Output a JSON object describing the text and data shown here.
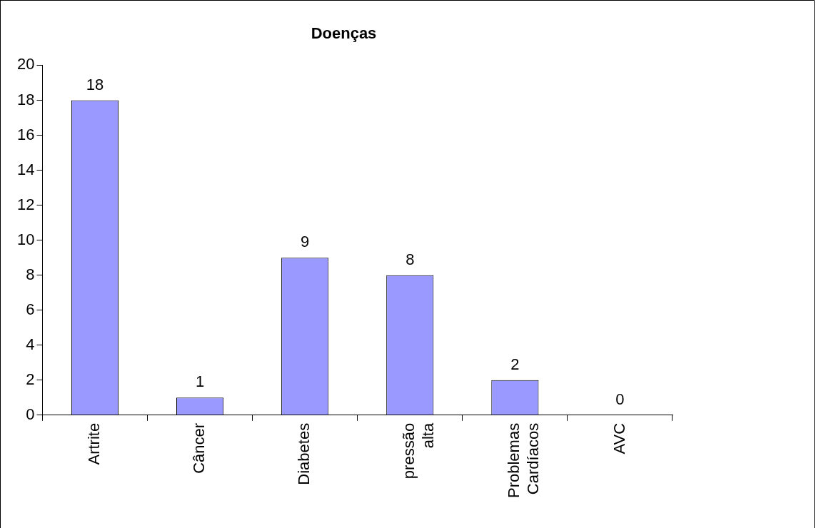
{
  "chart_data": {
    "type": "bar",
    "title": "Doenças",
    "categories": [
      "Artrite",
      "Câncer",
      "Diabetes",
      "pressão\nalta",
      "Problemas\nCardíacos",
      "AVC"
    ],
    "values": [
      18,
      1,
      9,
      8,
      2,
      0
    ],
    "color": "#9999ff",
    "ylim": [
      0,
      20
    ],
    "yticks": [
      0,
      2,
      4,
      6,
      8,
      10,
      12,
      14,
      16,
      18,
      20
    ],
    "grid": false,
    "data_labels": true,
    "legend": false
  }
}
